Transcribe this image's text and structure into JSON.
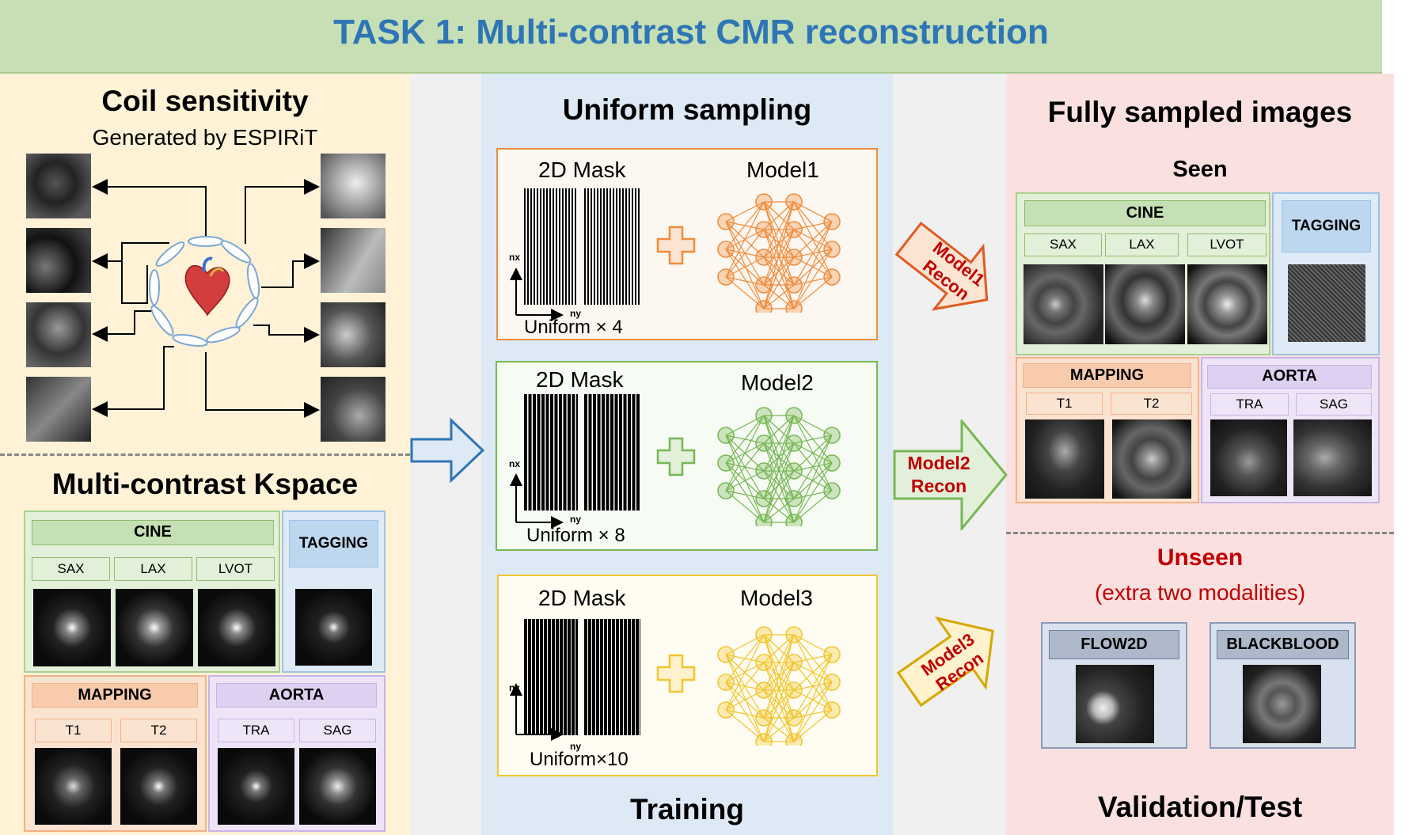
{
  "header": {
    "title": "TASK 1: Multi-contrast CMR reconstruction"
  },
  "left": {
    "coil_title": "Coil sensitivity",
    "coil_subtitle": "Generated by ESPIRiT",
    "kspace_title": "Multi-contrast Kspace",
    "cine": "CINE",
    "sax": "SAX",
    "lax": "LAX",
    "lvot": "LVOT",
    "tagging": "TAGGING",
    "mapping": "MAPPING",
    "t1": "T1",
    "t2": "T2",
    "aorta": "AORTA",
    "tra": "TRA",
    "sag": "SAG"
  },
  "middle": {
    "title": "Uniform sampling",
    "footer": "Training",
    "axis_nx": "nx",
    "axis_ny": "ny",
    "models": [
      {
        "mask_label": "2D Mask",
        "model_label": "Model1",
        "uniform": "Uniform × 4",
        "color": "#f08c3c"
      },
      {
        "mask_label": "2D Mask",
        "model_label": "Model2",
        "uniform": "Uniform × 8",
        "color": "#77b755"
      },
      {
        "mask_label": "2D Mask",
        "model_label": "Model3",
        "uniform": "Uniform×10",
        "color": "#f2c52e"
      }
    ]
  },
  "arrows": {
    "a1_l1": "Model1",
    "a1_l2": "Recon",
    "a2_l1": "Model2",
    "a2_l2": "Recon",
    "a3_l1": "Model3",
    "a3_l2": "Recon"
  },
  "right": {
    "title": "Fully sampled images",
    "seen": "Seen",
    "cine": "CINE",
    "sax": "SAX",
    "lax": "LAX",
    "lvot": "LVOT",
    "tagging": "TAGGING",
    "mapping": "MAPPING",
    "t1": "T1",
    "t2": "T2",
    "aorta": "AORTA",
    "tra": "TRA",
    "sag": "SAG",
    "unseen": "Unseen",
    "unseen_sub": "(extra two modalities)",
    "flow2d": "FLOW2D",
    "blackblood": "BLACKBLOOD",
    "footer": "Validation/Test"
  },
  "colors": {
    "header_bg": "#c6dfb4",
    "title_blue": "#2e75b6",
    "left_bg": "#fff2d6",
    "middle_bg": "#dde9f5",
    "right_bg": "#fbe0e0",
    "gap_bg": "#f0f0f0",
    "green_box": "#e2efd9",
    "blue_box": "#c9daf0",
    "orange_box": "#fbe3d2",
    "purple_box": "#ede5f7",
    "recon_red": "#c00000"
  }
}
